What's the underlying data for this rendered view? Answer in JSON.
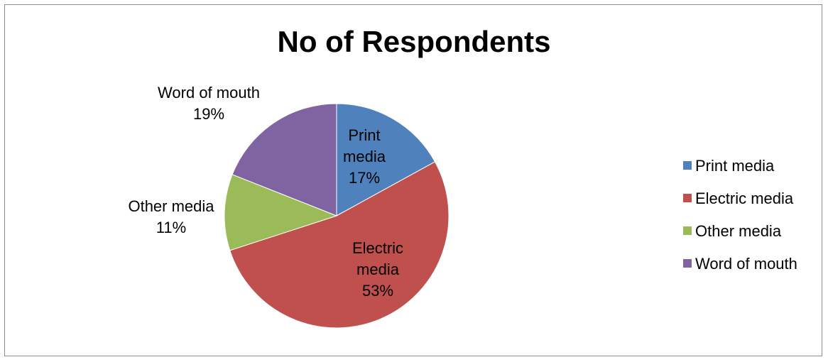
{
  "chart_data": {
    "type": "pie",
    "title": "No of Respondents",
    "categories": [
      "Print media",
      "Electric media",
      "Other media",
      "Word of mouth"
    ],
    "values": [
      17,
      53,
      11,
      19
    ],
    "unit": "%",
    "colors": [
      "#4f81bd",
      "#c0504d",
      "#9bbb59",
      "#8064a2"
    ],
    "data_labels": [
      {
        "category": "Print media",
        "lines": [
          "Print",
          "media",
          "17%"
        ]
      },
      {
        "category": "Electric media",
        "lines": [
          "Electric",
          "media",
          "53%"
        ]
      },
      {
        "category": "Other media",
        "lines": [
          "Other media",
          "11%"
        ]
      },
      {
        "category": "Word of mouth",
        "lines": [
          "Word of mouth",
          "19%"
        ]
      }
    ],
    "legend_position": "right",
    "start_angle": "12 o'clock",
    "direction": "clockwise"
  }
}
